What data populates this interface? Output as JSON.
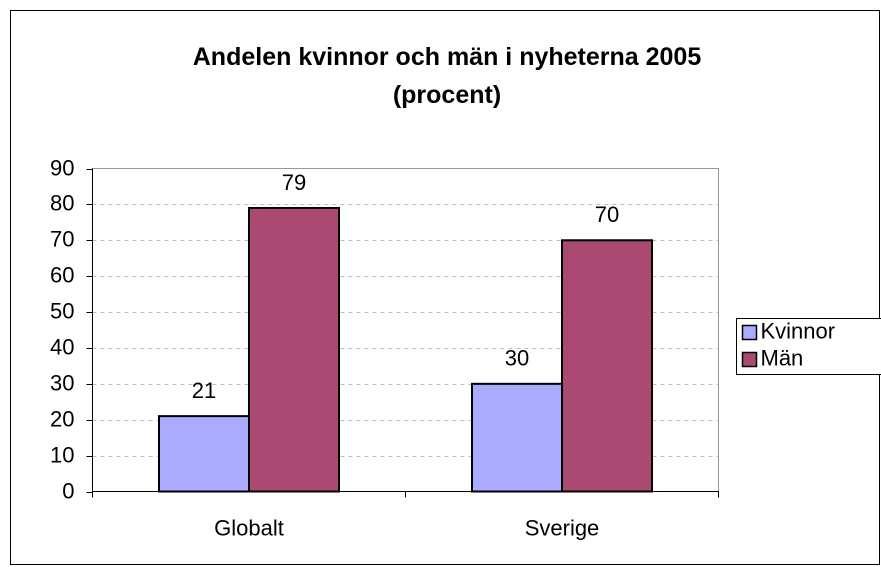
{
  "chart_data": {
    "type": "bar",
    "title": "Andelen kvinnor och män i nyheterna 2005 (procent)",
    "categories": [
      "Globalt",
      "Sverige"
    ],
    "series": [
      {
        "name": "Kvinnor",
        "color": "#aaaaff",
        "values": [
          21,
          30
        ]
      },
      {
        "name": "Män",
        "color": "#aa4a72",
        "values": [
          79,
          70
        ]
      }
    ],
    "ylim": [
      0,
      90
    ],
    "yticks": [
      0,
      10,
      20,
      30,
      40,
      50,
      60,
      70,
      80,
      90
    ],
    "grid": true,
    "legend": "right"
  }
}
